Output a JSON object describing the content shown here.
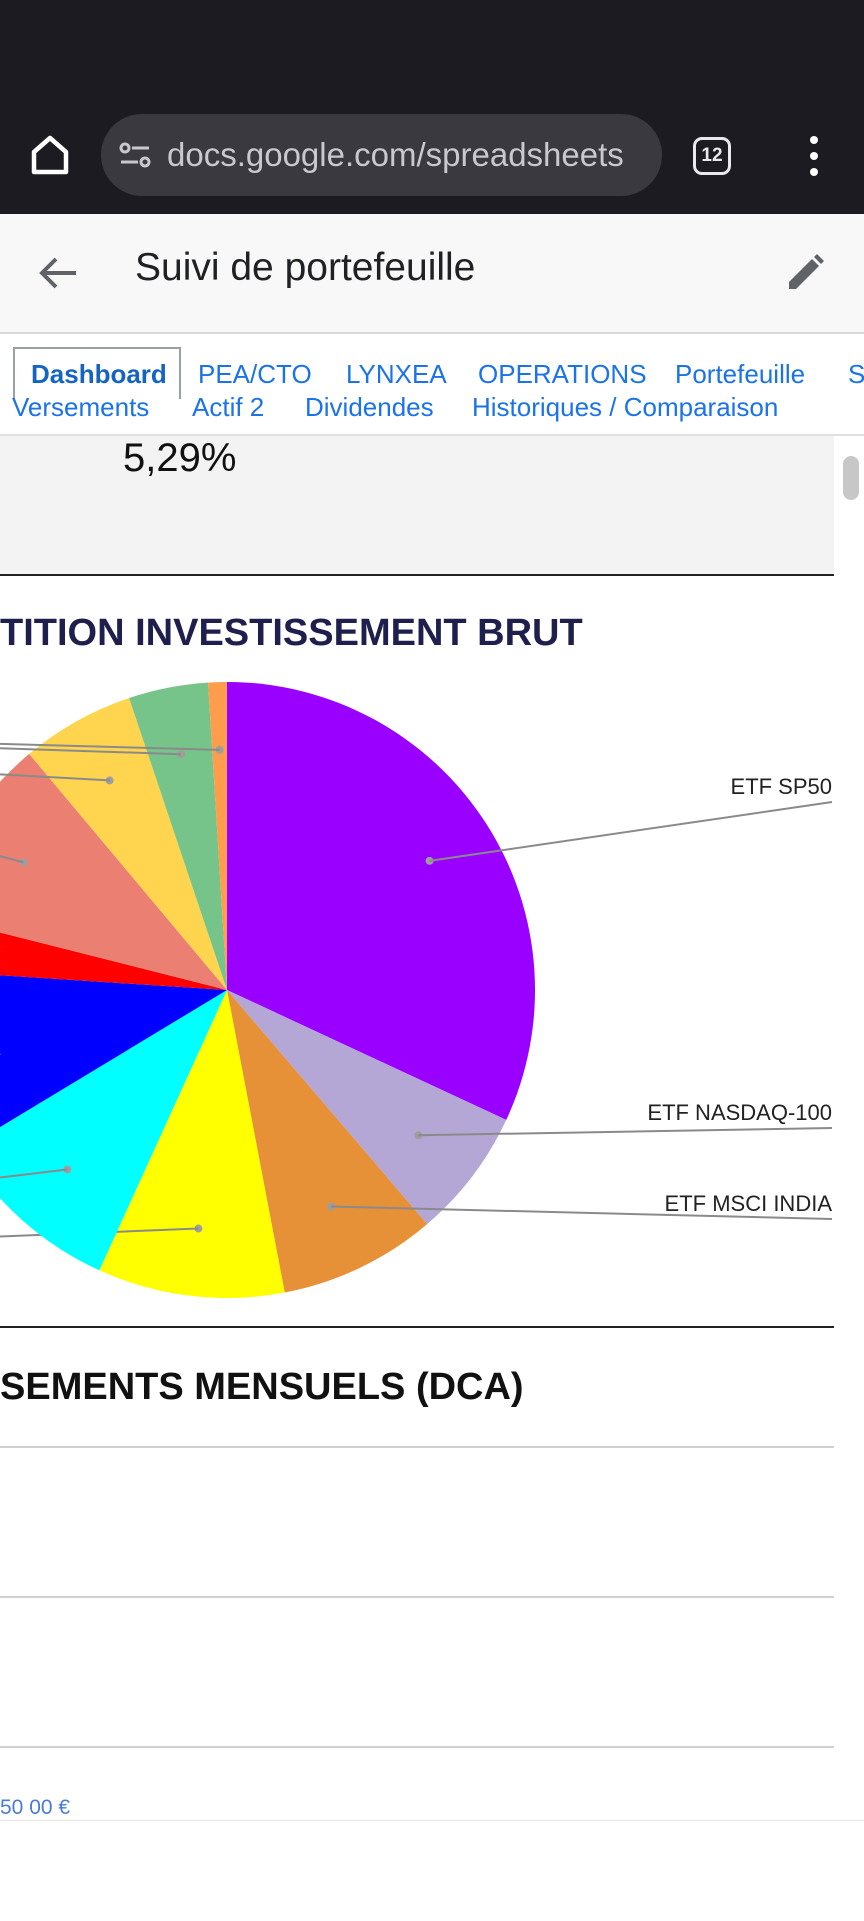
{
  "browser": {
    "url": "docs.google.com/spreadsheets",
    "tab_count": "12",
    "theme": {
      "background": "#1c1b22",
      "pill": "#3a3940"
    }
  },
  "appbar": {
    "title": "Suivi de portefeuille"
  },
  "sheet_tabs": {
    "row1": [
      "Dashboard",
      "PEA/CTO",
      "LYNXEA",
      "OPERATIONS",
      "Portefeuille",
      "S"
    ],
    "row2": [
      "Versements",
      "Actif 2",
      "Dividendes",
      "Historiques / Comparaison"
    ],
    "active": "Dashboard"
  },
  "content": {
    "percentage": "5,29%",
    "section1_title": "TITION INVESTISSEMENT BRUT",
    "section2_title": "SEMENTS MENSUELS (DCA)",
    "axis_tick": "50 00 €"
  },
  "chart_data": {
    "type": "pie",
    "title": "TITION INVESTISSEMENT BRUT",
    "slices": [
      {
        "label": "ETF SP50",
        "share": 0.3193,
        "color": "#9900ff"
      },
      {
        "label": "ETF NASDAQ-100",
        "share": 0.0681,
        "color": "#b4a7d6"
      },
      {
        "label": "ETF MSCI INDIA",
        "share": 0.0826,
        "color": "#e69138"
      },
      {
        "label": "",
        "share": 0.098,
        "color": "#ffff00"
      },
      {
        "label": "",
        "share": 0.0955,
        "color": "#00ffff"
      },
      {
        "label": "",
        "share": 0.0968,
        "color": "#0000ff"
      },
      {
        "label": "",
        "share": 0.0292,
        "color": "#ff0000"
      },
      {
        "label": "",
        "share": 0.0995,
        "color": "#ea7f72"
      },
      {
        "label": "",
        "share": 0.0595,
        "color": "#ffd54f"
      },
      {
        "label": "",
        "share": 0.0417,
        "color": "#76c489"
      },
      {
        "label": "",
        "share": 0.0098,
        "color": "#ff9d4d"
      }
    ],
    "legend": "none"
  }
}
